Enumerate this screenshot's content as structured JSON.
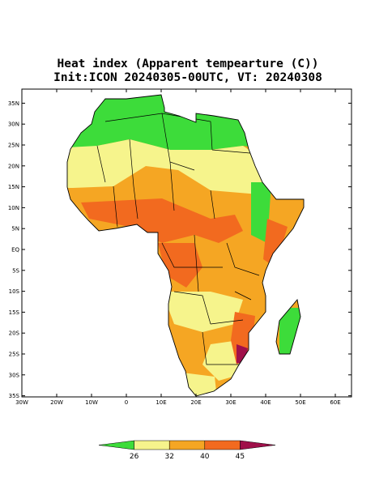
{
  "title": [
    "Heat index (Apparent tempearture (C))",
    "Init:ICON 20240305-00UTC, VT: 20240308"
  ],
  "lat_ticks": [
    {
      "value": 35,
      "label": "35N"
    },
    {
      "value": 30,
      "label": "30N"
    },
    {
      "value": 25,
      "label": "25N"
    },
    {
      "value": 20,
      "label": "20N"
    },
    {
      "value": 15,
      "label": "15N"
    },
    {
      "value": 10,
      "label": "10N"
    },
    {
      "value": 5,
      "label": "5N"
    },
    {
      "value": 0,
      "label": "EQ"
    },
    {
      "value": -5,
      "label": "5S"
    },
    {
      "value": -10,
      "label": "10S"
    },
    {
      "value": -15,
      "label": "15S"
    },
    {
      "value": -20,
      "label": "20S"
    },
    {
      "value": -25,
      "label": "25S"
    },
    {
      "value": -30,
      "label": "30S"
    },
    {
      "value": -35,
      "label": "35S"
    }
  ],
  "lon_ticks": [
    {
      "value": -30,
      "label": "30W"
    },
    {
      "value": -20,
      "label": "20W"
    },
    {
      "value": -10,
      "label": "10W"
    },
    0,
    {
      "value": 10,
      "label": "10E"
    },
    {
      "value": 20,
      "label": "20E"
    },
    {
      "value": 30,
      "label": "30E"
    },
    {
      "value": 40,
      "label": "40E"
    },
    {
      "value": 50,
      "label": "50E"
    },
    {
      "value": 60,
      "label": "60E"
    }
  ],
  "colorbar": {
    "levels": [
      26,
      32,
      40,
      45
    ],
    "colors": [
      "#3ddc3a",
      "#f6f48c",
      "#f5a623",
      "#f26a1f",
      "#a0104a"
    ]
  }
}
